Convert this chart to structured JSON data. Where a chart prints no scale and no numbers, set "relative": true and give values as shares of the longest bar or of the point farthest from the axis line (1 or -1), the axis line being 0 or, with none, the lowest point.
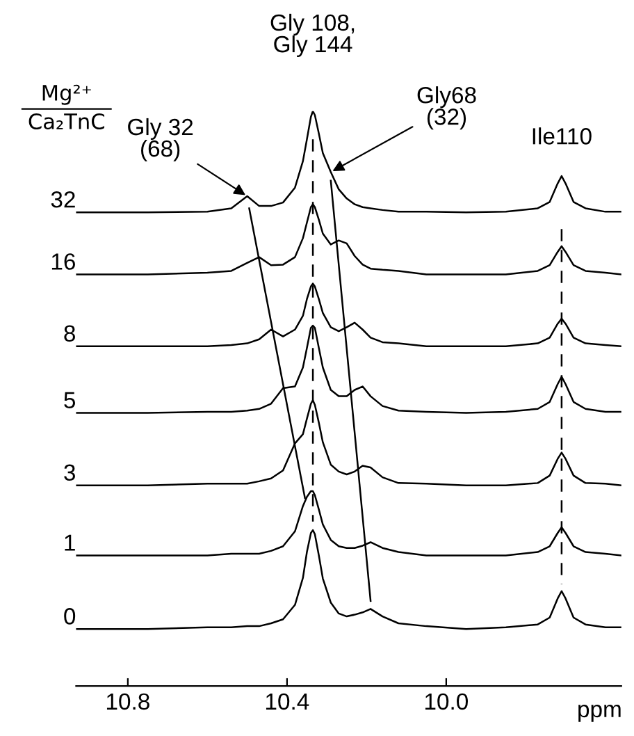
{
  "chart_data": {
    "type": "line",
    "relative": true,
    "ylabel": "Mg²⁺\nCa₂TnC",
    "xlabel": "ppm",
    "xlim": [
      10.93,
      9.56
    ],
    "xticks": [
      10.8,
      10.4,
      {
        "value": 10.0,
        "label": "10.0"
      }
    ],
    "tick_labels": "x",
    "grid": false,
    "marker": "none",
    "x": [
      10.93,
      10.75,
      10.6,
      10.54,
      10.5,
      10.47,
      10.44,
      10.41,
      10.38,
      10.36,
      10.35,
      10.34,
      10.335,
      10.33,
      10.32,
      10.31,
      10.29,
      10.27,
      10.25,
      10.23,
      10.21,
      10.19,
      10.16,
      10.12,
      10.05,
      9.95,
      9.85,
      9.77,
      9.74,
      9.72,
      9.71,
      9.7,
      9.68,
      9.65,
      9.6,
      9.56
    ],
    "series": [
      {
        "name": "32",
        "color": "#000000",
        "values": [
          0.824,
          0.824,
          0.825,
          0.831,
          0.852,
          0.835,
          0.835,
          0.841,
          0.867,
          0.913,
          0.951,
          0.99,
          1.0,
          0.993,
          0.961,
          0.927,
          0.894,
          0.864,
          0.848,
          0.838,
          0.833,
          0.831,
          0.828,
          0.825,
          0.825,
          0.824,
          0.825,
          0.831,
          0.842,
          0.874,
          0.887,
          0.874,
          0.842,
          0.831,
          0.825,
          0.825
        ]
      },
      {
        "name": "16",
        "color": "#000000",
        "values": [
          0.716,
          0.716,
          0.719,
          0.722,
          0.736,
          0.746,
          0.732,
          0.733,
          0.746,
          0.779,
          0.806,
          0.833,
          0.838,
          0.833,
          0.811,
          0.787,
          0.768,
          0.775,
          0.77,
          0.748,
          0.733,
          0.726,
          0.724,
          0.722,
          0.716,
          0.716,
          0.716,
          0.722,
          0.732,
          0.755,
          0.765,
          0.755,
          0.732,
          0.722,
          0.719,
          0.716
        ]
      },
      {
        "name": "8",
        "color": "#000000",
        "values": [
          0.591,
          0.591,
          0.591,
          0.593,
          0.596,
          0.603,
          0.62,
          0.608,
          0.62,
          0.644,
          0.673,
          0.695,
          0.7,
          0.695,
          0.673,
          0.649,
          0.624,
          0.617,
          0.624,
          0.632,
          0.62,
          0.606,
          0.598,
          0.596,
          0.591,
          0.591,
          0.591,
          0.596,
          0.606,
          0.63,
          0.639,
          0.63,
          0.606,
          0.596,
          0.593,
          0.591
        ]
      },
      {
        "name": "5",
        "color": "#000000",
        "values": [
          0.475,
          0.475,
          0.477,
          0.477,
          0.479,
          0.482,
          0.491,
          0.518,
          0.521,
          0.554,
          0.588,
          0.623,
          0.627,
          0.623,
          0.588,
          0.554,
          0.515,
          0.504,
          0.504,
          0.515,
          0.521,
          0.504,
          0.487,
          0.479,
          0.477,
          0.475,
          0.477,
          0.482,
          0.494,
          0.525,
          0.538,
          0.525,
          0.494,
          0.482,
          0.477,
          0.477
        ]
      },
      {
        "name": "3",
        "color": "#000000",
        "values": [
          0.349,
          0.349,
          0.352,
          0.352,
          0.352,
          0.356,
          0.361,
          0.375,
          0.422,
          0.438,
          0.465,
          0.491,
          0.497,
          0.489,
          0.458,
          0.424,
          0.385,
          0.373,
          0.368,
          0.373,
          0.383,
          0.38,
          0.363,
          0.353,
          0.352,
          0.349,
          0.349,
          0.353,
          0.366,
          0.395,
          0.406,
          0.395,
          0.366,
          0.353,
          0.352,
          0.349
        ]
      },
      {
        "name": "1",
        "color": "#000000",
        "values": [
          0.227,
          0.227,
          0.227,
          0.23,
          0.23,
          0.23,
          0.235,
          0.243,
          0.269,
          0.313,
          0.329,
          0.339,
          0.339,
          0.332,
          0.307,
          0.281,
          0.254,
          0.243,
          0.24,
          0.24,
          0.244,
          0.25,
          0.24,
          0.233,
          0.227,
          0.227,
          0.227,
          0.233,
          0.243,
          0.266,
          0.276,
          0.266,
          0.243,
          0.233,
          0.23,
          0.227
        ]
      },
      {
        "name": "0",
        "color": "#000000",
        "values": [
          0.099,
          0.099,
          0.102,
          0.102,
          0.104,
          0.104,
          0.109,
          0.116,
          0.141,
          0.188,
          0.233,
          0.266,
          0.271,
          0.264,
          0.227,
          0.187,
          0.145,
          0.126,
          0.121,
          0.124,
          0.128,
          0.134,
          0.121,
          0.109,
          0.104,
          0.099,
          0.102,
          0.107,
          0.119,
          0.152,
          0.165,
          0.152,
          0.119,
          0.107,
          0.102,
          0.102
        ]
      },
      {
        "type": "line",
        "color": "#000000",
        "line_style": "solid",
        "x": [
          10.495,
          10.355
        ],
        "values": [
          0.831,
          0.327
        ]
      },
      {
        "type": "line",
        "color": "#000000",
        "line_style": "solid",
        "x": [
          10.29,
          10.19
        ],
        "values": [
          0.879,
          0.148
        ]
      },
      {
        "type": "line",
        "color": "#000000",
        "line_style": "dashed",
        "x": [
          10.335,
          10.335
        ],
        "values": [
          0.951,
          0.286
        ]
      },
      {
        "type": "line",
        "color": "#000000",
        "line_style": "dashed",
        "x": [
          9.71,
          9.71
        ],
        "values": [
          0.795,
          0.177
        ]
      }
    ],
    "annotations": [
      {
        "text": "Gly 108,\nGly 144",
        "x": 10.335,
        "y": 1.0
      },
      {
        "text": "Gly 32\n(68)",
        "x": 10.5,
        "y": 0.852
      },
      {
        "text": "Gly68\n(32)",
        "x": 10.29,
        "y": 0.894
      },
      {
        "text": "Ile110",
        "x": 9.71,
        "y": 0.887
      }
    ]
  }
}
